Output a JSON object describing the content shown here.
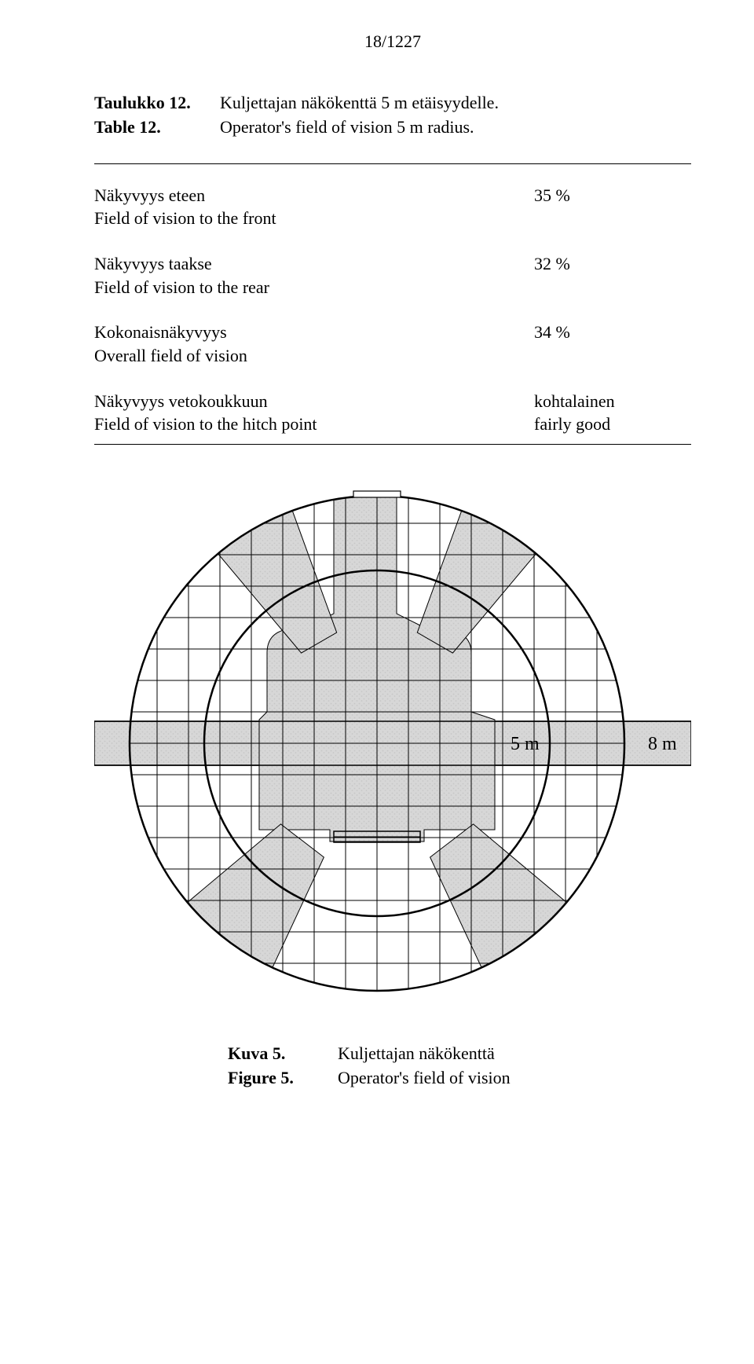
{
  "page_number": "18/1227",
  "table_heading": {
    "label_fi": "Taulukko 12.",
    "label_en": "Table 12.",
    "title_fi": "Kuljettajan näkökenttä 5 m etäisyydelle.",
    "title_en": "Operator's field of vision 5 m radius."
  },
  "rows": [
    {
      "label_fi": "Näkyvyys eteen",
      "label_en": "Field of vision to the front",
      "value": "35 %"
    },
    {
      "label_fi": "Näkyvyys taakse",
      "label_en": "Field of vision to the rear",
      "value": "32 %"
    },
    {
      "label_fi": "Kokonaisnäkyvyys",
      "label_en": "Overall field of vision",
      "value": "34 %"
    },
    {
      "label_fi": "Näkyvyys vetokoukkuun",
      "label_en": "Field of vision to the hitch point",
      "value_fi": "kohtalainen",
      "value_en": "fairly good"
    }
  ],
  "diagram": {
    "labels": {
      "inner": "5 m",
      "outer": "8 m"
    },
    "grid_step": 40,
    "circle_r_outer": 315,
    "circle_r_inner": 220,
    "colors": {
      "bg": "#ffffff",
      "stroke": "#000000",
      "shadow_fill": "#d7d7d7",
      "shadow_texture": "#c6c6c6"
    },
    "font_family": "Times New Roman, serif",
    "label_fontsize": 24
  },
  "caption": {
    "label_fi": "Kuva 5.",
    "label_en": "Figure 5.",
    "title_fi": "Kuljettajan näkökenttä",
    "title_en": "Operator's field of vision"
  }
}
